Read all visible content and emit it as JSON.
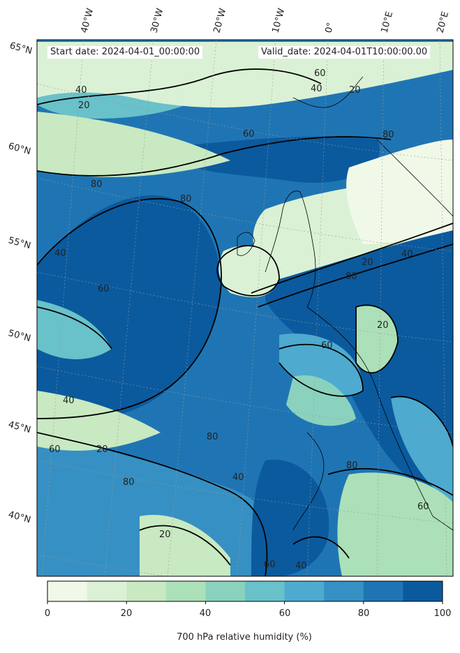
{
  "map": {
    "start_date": "Start date: 2024-04-01_00:00:00",
    "valid_date": "Valid_date: 2024-04-01T10:00:00.00",
    "lat_labels": [
      "65°N",
      "60°N",
      "55°N",
      "50°N",
      "45°N",
      "40°N"
    ],
    "lon_labels": [
      "40°W",
      "30°W",
      "20°W",
      "10°W",
      "0°",
      "10°E",
      "20°E"
    ],
    "contour_labels": [
      "20",
      "40",
      "60",
      "80",
      "60",
      "40",
      "20",
      "80",
      "60",
      "40",
      "80",
      "20",
      "40",
      "60",
      "80",
      "20",
      "40",
      "80",
      "60",
      "20",
      "40",
      "60",
      "80",
      "40",
      "20",
      "60",
      "80"
    ]
  },
  "colorbar": {
    "label": "700 hPa relative humidity (%)",
    "ticks": [
      "0",
      "20",
      "40",
      "60",
      "80",
      "100"
    ],
    "levels": [
      0,
      10,
      20,
      30,
      40,
      50,
      60,
      70,
      80,
      90,
      100
    ],
    "colors": [
      "#f0f9e8",
      "#dbf1d5",
      "#c8e9c1",
      "#ace0b8",
      "#8ad2be",
      "#69c1c9",
      "#4eaacf",
      "#3790c3",
      "#1f75b3",
      "#0b5a9e"
    ]
  },
  "chart_data": {
    "type": "heatmap",
    "variable": "700 hPa relative humidity (%)",
    "colorbar_range": [
      0,
      100
    ],
    "contour_levels": [
      20,
      40,
      60,
      80
    ]
  }
}
